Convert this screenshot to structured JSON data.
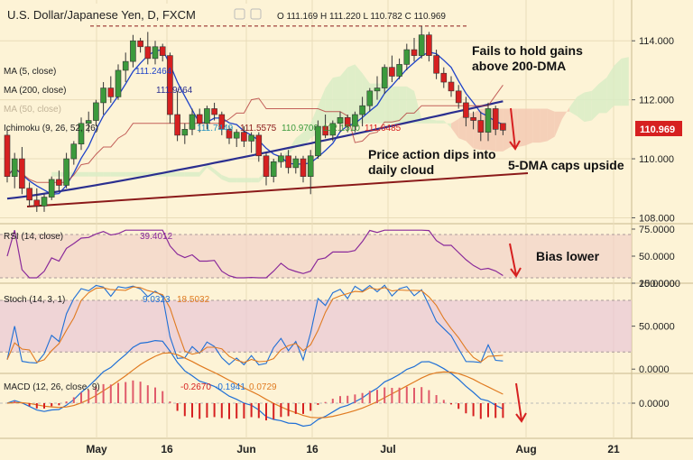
{
  "header": {
    "title": "U.S. Dollar/Japanese Yen, D, FXCM",
    "ohlc": "O 111.169 H 111.220 L 110.782 C 110.969"
  },
  "indicator_labels": {
    "ma5": "MA (5, close)",
    "ma200": "MA (200, close)",
    "ma50": "MA (50, close)",
    "ichimoku": "Ichimoku (9, 26, 52, 26)",
    "rsi": "RSI (14, close)",
    "stoch": "Stoch (14, 3, 1)",
    "macd": "MACD (12, 26, close, 9)"
  },
  "value_labels": {
    "ma5": "111.2464",
    "ma200": "111.9664",
    "ichimoku": [
      "111.7449",
      "111.5575",
      "110.9700",
      "112.1510",
      "111.6485"
    ],
    "rsi": "39.4012",
    "stoch": [
      "9.0323",
      "18.5032"
    ],
    "macd": [
      "-0.2670",
      "-0.1941",
      "0.0729"
    ]
  },
  "last_price": "110.969",
  "annotations": {
    "fails": [
      "Fails to hold gains",
      "above 200-DMA"
    ],
    "price_action": [
      "Price action dips into",
      "daily cloud"
    ],
    "caps": "5-DMA caps upside",
    "bias": "Bias lower"
  },
  "colors": {
    "background": "#fdf3d6",
    "bull": "#3c9a3c",
    "bear": "#d62020",
    "ma200": "#2b2f8f",
    "ma5": "#1f43c9",
    "trendline": "#8b1a1a",
    "cloud_bear": "#f3c9b3",
    "cloud_bull": "#d9ecc5",
    "price_tag": "#d62020",
    "arrow": "#d62020"
  },
  "chart_data": {
    "type": "line",
    "price": {
      "ylim": [
        107.8,
        115.2
      ],
      "y_ticks": [
        "114.000",
        "112.000",
        "110.000",
        "108.000"
      ],
      "resistance_level": 114.5,
      "candles": [
        [
          110.8,
          111.0,
          109.2,
          109.4
        ],
        [
          109.4,
          110.2,
          109.0,
          110.0
        ],
        [
          110.0,
          110.4,
          108.8,
          109.0
        ],
        [
          109.0,
          109.2,
          108.4,
          108.6
        ],
        [
          108.6,
          109.0,
          108.2,
          108.4
        ],
        [
          108.4,
          108.8,
          108.2,
          108.7
        ],
        [
          108.7,
          109.4,
          108.6,
          109.3
        ],
        [
          109.3,
          109.6,
          108.9,
          109.1
        ],
        [
          109.1,
          110.2,
          109.0,
          110.0
        ],
        [
          110.0,
          110.6,
          109.8,
          110.5
        ],
        [
          110.5,
          111.4,
          110.3,
          111.2
        ],
        [
          111.2,
          111.6,
          110.9,
          111.3
        ],
        [
          111.3,
          112.0,
          111.1,
          111.9
        ],
        [
          111.9,
          112.6,
          111.5,
          112.4
        ],
        [
          112.4,
          112.8,
          111.9,
          112.1
        ],
        [
          112.1,
          113.2,
          112.0,
          113.0
        ],
        [
          113.0,
          113.6,
          112.6,
          113.3
        ],
        [
          113.3,
          114.2,
          113.1,
          114.0
        ],
        [
          114.0,
          114.1,
          113.6,
          113.8
        ],
        [
          113.8,
          114.3,
          113.2,
          113.4
        ],
        [
          113.4,
          114.0,
          113.2,
          113.8
        ],
        [
          113.8,
          113.9,
          113.3,
          113.5
        ],
        [
          113.5,
          113.6,
          111.2,
          111.5
        ],
        [
          111.5,
          112.3,
          110.6,
          110.8
        ],
        [
          110.8,
          111.2,
          110.5,
          111.0
        ],
        [
          111.0,
          111.7,
          110.8,
          111.5
        ],
        [
          111.5,
          111.7,
          110.9,
          111.2
        ],
        [
          111.2,
          111.8,
          111.0,
          111.7
        ],
        [
          111.7,
          111.9,
          111.3,
          111.5
        ],
        [
          111.5,
          111.6,
          110.8,
          111.0
        ],
        [
          111.0,
          111.1,
          110.5,
          110.7
        ],
        [
          110.7,
          111.0,
          110.4,
          110.9
        ],
        [
          110.9,
          111.1,
          110.4,
          110.6
        ],
        [
          110.6,
          110.9,
          110.2,
          110.8
        ],
        [
          110.8,
          110.9,
          109.9,
          110.1
        ],
        [
          110.1,
          110.2,
          109.1,
          109.4
        ],
        [
          109.4,
          110.0,
          109.2,
          109.9
        ],
        [
          109.9,
          110.2,
          109.7,
          110.1
        ],
        [
          110.1,
          110.3,
          109.5,
          109.7
        ],
        [
          109.7,
          110.1,
          109.5,
          110.0
        ],
        [
          110.0,
          110.1,
          109.2,
          109.4
        ],
        [
          109.4,
          110.3,
          108.8,
          110.1
        ],
        [
          110.1,
          111.3,
          110.0,
          111.1
        ],
        [
          111.1,
          111.5,
          110.7,
          110.8
        ],
        [
          110.8,
          111.3,
          110.6,
          111.2
        ],
        [
          111.2,
          111.6,
          110.9,
          111.4
        ],
        [
          111.4,
          111.5,
          110.9,
          111.1
        ],
        [
          111.1,
          111.6,
          110.9,
          111.5
        ],
        [
          111.5,
          112.1,
          111.1,
          111.8
        ],
        [
          111.8,
          112.4,
          111.6,
          112.3
        ],
        [
          112.3,
          112.8,
          112.0,
          112.4
        ],
        [
          112.4,
          113.2,
          112.2,
          113.1
        ],
        [
          113.1,
          113.5,
          112.6,
          112.8
        ],
        [
          112.8,
          113.4,
          112.7,
          113.2
        ],
        [
          113.2,
          113.9,
          113.0,
          113.7
        ],
        [
          113.7,
          114.1,
          113.3,
          113.5
        ],
        [
          113.5,
          114.5,
          113.4,
          114.2
        ],
        [
          114.2,
          114.3,
          113.3,
          113.5
        ],
        [
          113.5,
          113.7,
          112.7,
          112.9
        ],
        [
          112.9,
          113.1,
          112.4,
          112.6
        ],
        [
          112.6,
          112.8,
          112.1,
          112.3
        ],
        [
          112.3,
          112.5,
          111.7,
          111.9
        ],
        [
          111.9,
          112.1,
          111.1,
          111.4
        ],
        [
          111.4,
          111.6,
          111.0,
          111.3
        ],
        [
          111.3,
          111.6,
          110.6,
          110.9
        ],
        [
          110.9,
          111.9,
          110.6,
          111.7
        ],
        [
          111.7,
          111.8,
          110.8,
          111.0
        ],
        [
          111.2,
          111.2,
          110.8,
          110.969
        ]
      ]
    },
    "rsi": {
      "ylim": [
        25,
        80
      ],
      "levels": [
        70,
        30
      ],
      "y_ticks": [
        "75.0000",
        "50.0000",
        "25.0000"
      ]
    },
    "stoch": {
      "ylim": [
        -5,
        100
      ],
      "levels": [
        80,
        20
      ],
      "y_ticks": [
        "100.0000",
        "50.0000",
        "0.0000"
      ]
    },
    "macd": {
      "ylim": [
        -0.65,
        0.55
      ],
      "y_ticks": [
        "0.0000"
      ]
    },
    "x_labels": [
      "May",
      "16",
      "Jun",
      "16",
      "Jul",
      "Aug",
      "21"
    ]
  }
}
